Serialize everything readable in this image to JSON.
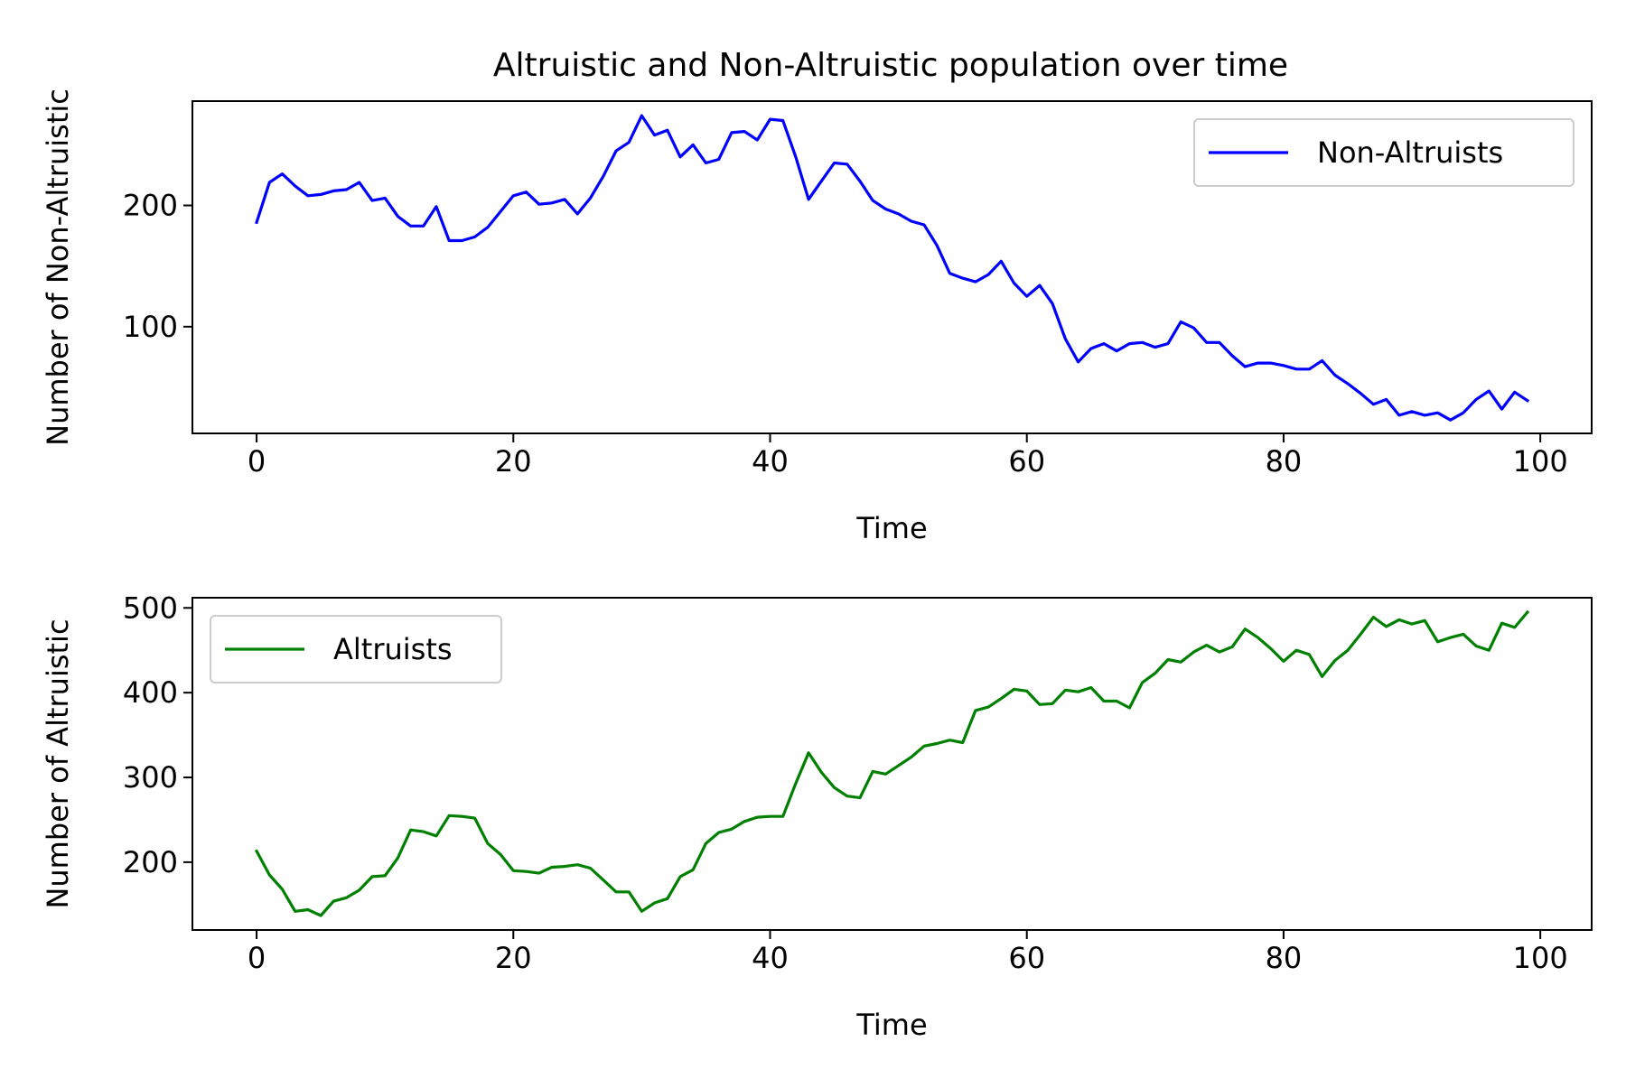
{
  "chart_data": [
    {
      "type": "line",
      "title": "Altruistic and Non-Altruistic population over time",
      "xlabel": "Time",
      "ylabel": "Number of Non-Altruistic",
      "xlim": [
        -5,
        104
      ],
      "ylim": [
        12,
        286
      ],
      "xticks": [
        0,
        20,
        40,
        60,
        80,
        100
      ],
      "yticks": [
        100,
        200
      ],
      "grid": false,
      "legend": "top-right",
      "series": [
        {
          "name": "Non-Altruists",
          "color": "#0000ff",
          "x": [
            0,
            1,
            2,
            3,
            4,
            5,
            6,
            7,
            8,
            9,
            10,
            11,
            12,
            13,
            14,
            15,
            16,
            17,
            18,
            19,
            20,
            21,
            22,
            23,
            24,
            25,
            26,
            27,
            28,
            29,
            30,
            31,
            32,
            33,
            34,
            35,
            36,
            37,
            38,
            39,
            40,
            41,
            42,
            43,
            44,
            45,
            46,
            47,
            48,
            49,
            50,
            51,
            52,
            53,
            54,
            55,
            56,
            57,
            58,
            59,
            60,
            61,
            62,
            63,
            64,
            65,
            66,
            67,
            68,
            69,
            70,
            71,
            72,
            73,
            74,
            75,
            76,
            77,
            78,
            79,
            80,
            81,
            82,
            83,
            84,
            85,
            86,
            87,
            88,
            89,
            90,
            91,
            92,
            93,
            94,
            95,
            96,
            97,
            98,
            99
          ],
          "values": [
            186,
            219,
            226,
            216,
            208,
            209,
            212,
            213,
            219,
            204,
            206,
            191,
            183,
            183,
            199,
            171,
            171,
            174,
            182,
            195,
            208,
            211,
            201,
            202,
            205,
            193,
            206,
            224,
            245,
            252,
            274,
            258,
            262,
            240,
            250,
            235,
            238,
            260,
            261,
            254,
            271,
            270,
            240,
            205,
            220,
            235,
            234,
            220,
            204,
            197,
            193,
            187,
            184,
            167,
            144,
            140,
            137,
            143,
            154,
            136,
            125,
            134,
            119,
            90,
            71,
            82,
            86,
            80,
            86,
            87,
            83,
            86,
            104,
            99,
            87,
            87,
            76,
            67,
            70,
            70,
            68,
            65,
            65,
            72,
            60,
            53,
            45,
            36,
            40,
            27,
            30,
            27,
            29,
            23,
            29,
            40,
            47,
            32,
            46,
            39
          ]
        }
      ]
    },
    {
      "type": "line",
      "title": "",
      "xlabel": "Time",
      "ylabel": "Number of Altruistic",
      "xlim": [
        -5,
        104
      ],
      "ylim": [
        120,
        512
      ],
      "xticks": [
        0,
        20,
        40,
        60,
        80,
        100
      ],
      "yticks": [
        200,
        300,
        400,
        500
      ],
      "grid": false,
      "legend": "top-left",
      "series": [
        {
          "name": "Altruists",
          "color": "#008000",
          "x": [
            0,
            1,
            2,
            3,
            4,
            5,
            6,
            7,
            8,
            9,
            10,
            11,
            12,
            13,
            14,
            15,
            16,
            17,
            18,
            19,
            20,
            21,
            22,
            23,
            24,
            25,
            26,
            27,
            28,
            29,
            30,
            31,
            32,
            33,
            34,
            35,
            36,
            37,
            38,
            39,
            40,
            41,
            42,
            43,
            44,
            45,
            46,
            47,
            48,
            49,
            50,
            51,
            52,
            53,
            54,
            55,
            56,
            57,
            58,
            59,
            60,
            61,
            62,
            63,
            64,
            65,
            66,
            67,
            68,
            69,
            70,
            71,
            72,
            73,
            74,
            75,
            76,
            77,
            78,
            79,
            80,
            81,
            82,
            83,
            84,
            85,
            86,
            87,
            88,
            89,
            90,
            91,
            92,
            93,
            94,
            95,
            96,
            97,
            98,
            99
          ],
          "values": [
            213,
            185,
            168,
            142,
            144,
            137,
            154,
            158,
            167,
            183,
            184,
            205,
            238,
            236,
            231,
            255,
            254,
            252,
            222,
            209,
            190,
            189,
            187,
            194,
            195,
            197,
            193,
            179,
            165,
            165,
            142,
            152,
            157,
            183,
            191,
            222,
            235,
            239,
            248,
            253,
            254,
            254,
            293,
            329,
            306,
            288,
            278,
            276,
            307,
            304,
            314,
            324,
            337,
            340,
            344,
            341,
            379,
            383,
            393,
            404,
            402,
            386,
            387,
            403,
            401,
            406,
            390,
            390,
            382,
            412,
            423,
            439,
            436,
            448,
            456,
            448,
            454,
            475,
            465,
            452,
            437,
            450,
            445,
            419,
            438,
            450,
            469,
            489,
            478,
            486,
            481,
            485,
            460,
            465,
            469,
            455,
            450,
            482,
            477,
            495
          ]
        }
      ]
    }
  ]
}
